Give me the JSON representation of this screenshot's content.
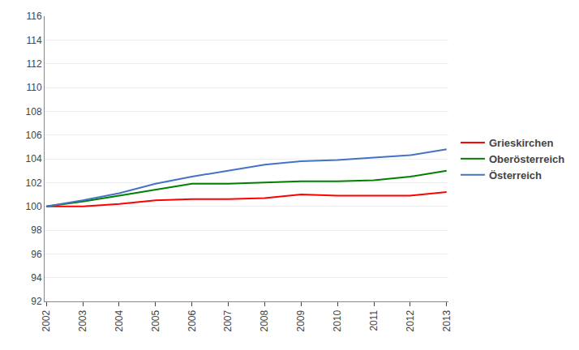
{
  "chart_data": {
    "type": "line",
    "x": [
      2002,
      2003,
      2004,
      2005,
      2006,
      2007,
      2008,
      2009,
      2010,
      2011,
      2012,
      2013
    ],
    "series": [
      {
        "name": "Grieskirchen",
        "color": "#ff0000",
        "values": [
          100.0,
          100.0,
          100.2,
          100.5,
          100.6,
          100.6,
          100.7,
          101.0,
          100.9,
          100.9,
          100.9,
          101.2
        ]
      },
      {
        "name": "Oberösterreich",
        "color": "#008000",
        "values": [
          100.0,
          100.4,
          100.9,
          101.4,
          101.9,
          101.9,
          102.0,
          102.1,
          102.1,
          102.2,
          102.5,
          103.0
        ]
      },
      {
        "name": "Österreich",
        "color": "#4472c4",
        "values": [
          100.0,
          100.5,
          101.1,
          101.9,
          102.5,
          103.0,
          103.5,
          103.8,
          103.9,
          104.1,
          104.3,
          104.8
        ]
      }
    ],
    "xlim": [
      2001.95,
      2013.05
    ],
    "xticks": [
      2002,
      2003,
      2004,
      2005,
      2006,
      2007,
      2008,
      2009,
      2010,
      2011,
      2012,
      2013
    ],
    "ylim": [
      92,
      116
    ],
    "yticks": [
      92,
      94,
      96,
      98,
      100,
      102,
      104,
      106,
      108,
      110,
      112,
      114,
      116
    ],
    "grid": true,
    "legend": "right"
  }
}
